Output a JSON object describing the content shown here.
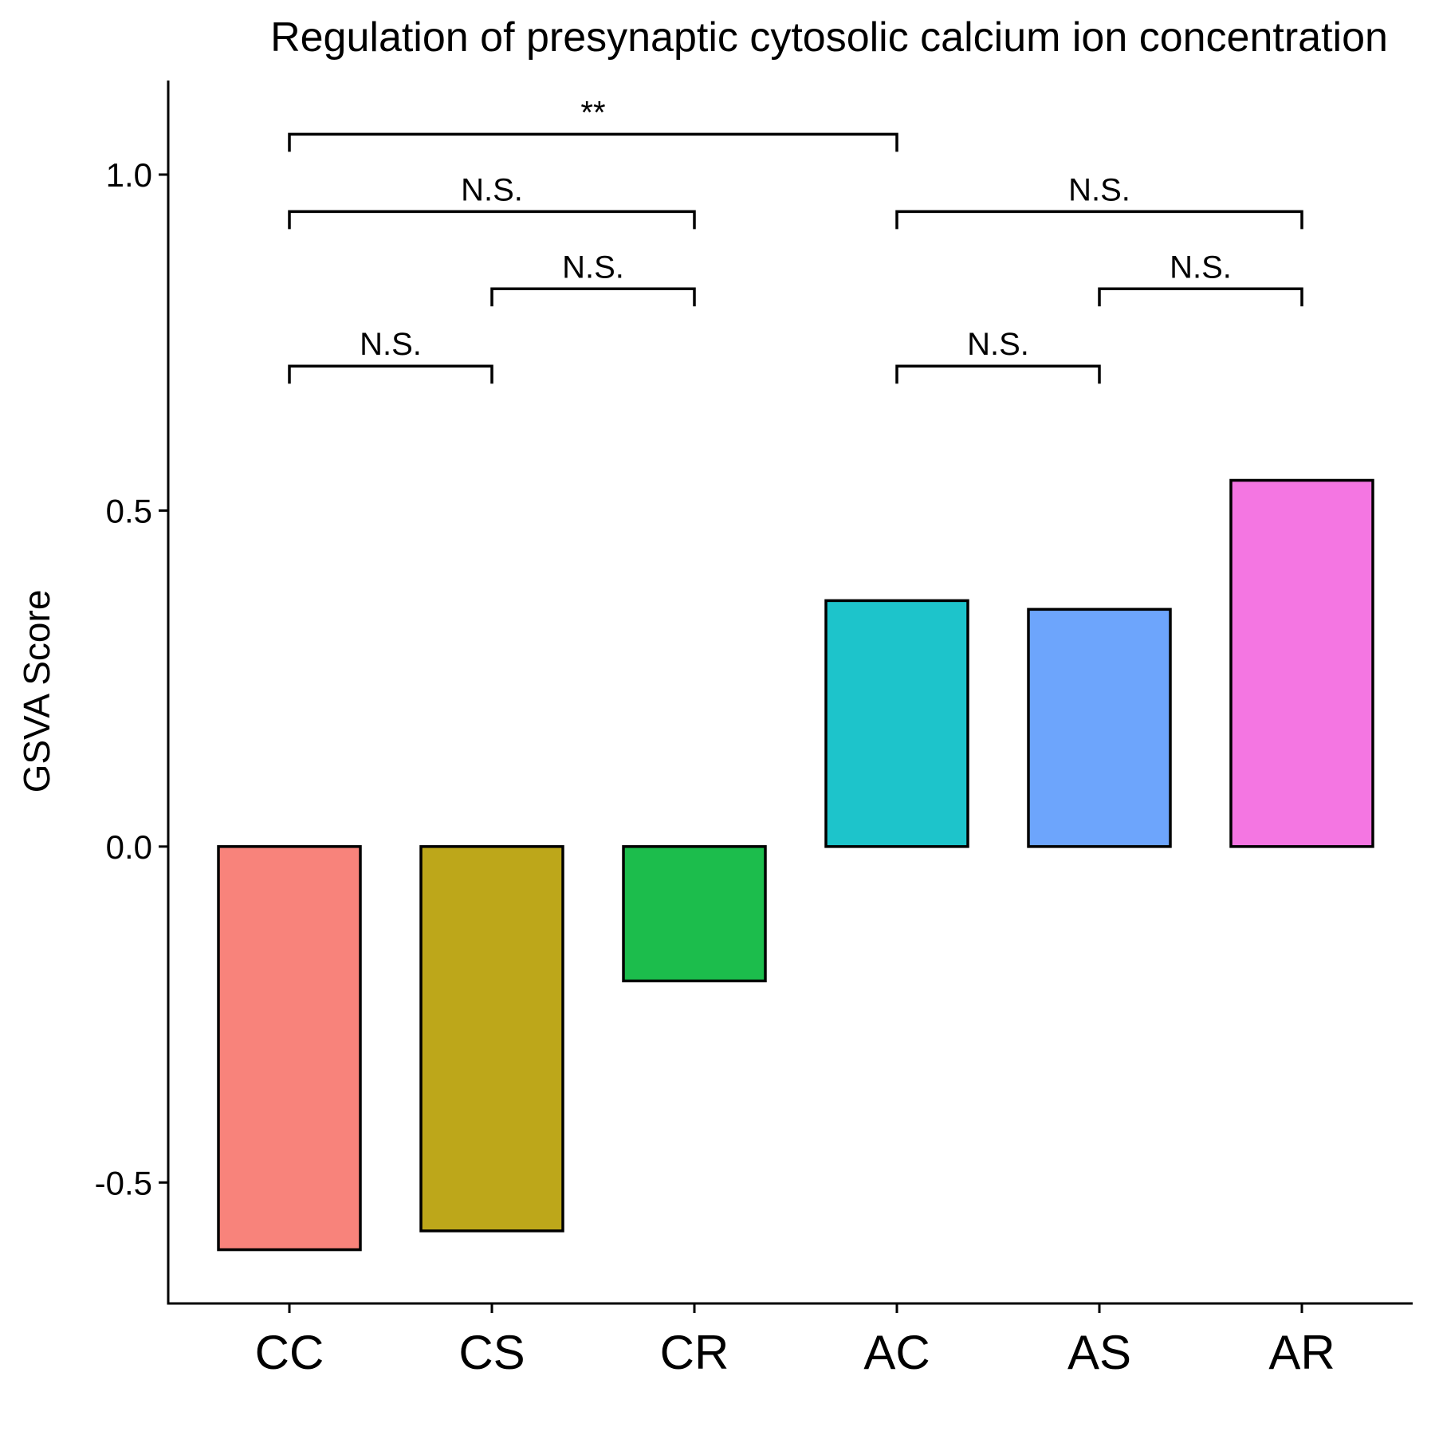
{
  "chart_data": {
    "type": "bar",
    "title": "Regulation of presynaptic cytosolic calcium ion concentration",
    "xlabel": "",
    "ylabel": "GSVA Score",
    "categories": [
      "CC",
      "CS",
      "CR",
      "AC",
      "AS",
      "AR"
    ],
    "values": [
      -0.6,
      -0.572,
      -0.2,
      0.366,
      0.353,
      0.545
    ],
    "colors": [
      "#F8837B",
      "#BDA71A",
      "#1CBD4C",
      "#1DC4CB",
      "#6DA5FC",
      "#F476E2"
    ],
    "ylim": [
      -0.68,
      1.14
    ],
    "yticks": [
      -0.5,
      0.0,
      0.5,
      1.0
    ],
    "ytick_labels": [
      "-0.5",
      "0.0",
      "0.5",
      "1.0"
    ],
    "grid": false,
    "legend": "none",
    "comparisons": [
      {
        "from": "CC",
        "to": "AC",
        "y": 1.06,
        "label": "**"
      },
      {
        "from": "CC",
        "to": "CR",
        "y": 0.945,
        "label": "N.S."
      },
      {
        "from": "AC",
        "to": "AR",
        "y": 0.945,
        "label": "N.S."
      },
      {
        "from": "CS",
        "to": "CR",
        "y": 0.83,
        "label": "N.S."
      },
      {
        "from": "AS",
        "to": "AR",
        "y": 0.83,
        "label": "N.S."
      },
      {
        "from": "CC",
        "to": "CS",
        "y": 0.715,
        "label": "N.S."
      },
      {
        "from": "AC",
        "to": "AS",
        "y": 0.715,
        "label": "N.S."
      }
    ]
  }
}
